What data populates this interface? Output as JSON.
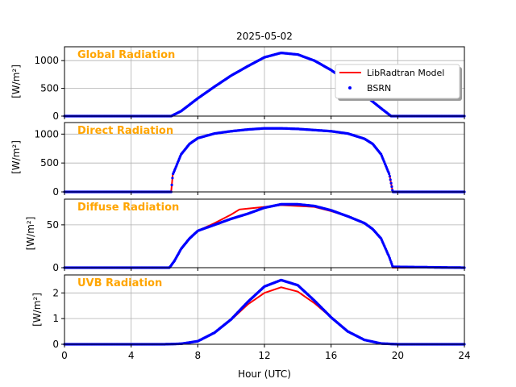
{
  "figure_title": "2025-05-02",
  "colors": {
    "model": "#ff0000",
    "bsrn": "#0000ff",
    "panel_title": "#ffa500",
    "grid": "#b0b0b0"
  },
  "legend": {
    "placement": "upper-right of top panel",
    "entries": [
      "LibRadtran Model",
      "BSRN"
    ]
  },
  "chart_data": [
    {
      "type": "line",
      "panel_title": "Global Radiation",
      "ylabel": "[W/m²]",
      "xlabel": "",
      "xlim": [
        0,
        24
      ],
      "ylim": [
        0,
        1250
      ],
      "yticks": [
        0,
        500,
        1000
      ],
      "xticks": [
        0,
        4,
        8,
        12,
        16,
        20,
        24
      ],
      "grid": true,
      "series": [
        {
          "name": "LibRadtran Model",
          "style": "line",
          "x": [
            0,
            6.4,
            7,
            8,
            9,
            10,
            11,
            12,
            13,
            14,
            15,
            16,
            17,
            18,
            19,
            19.6,
            24
          ],
          "y": [
            0,
            0,
            90,
            320,
            530,
            730,
            900,
            1060,
            1140,
            1110,
            1000,
            830,
            620,
            380,
            140,
            0,
            0
          ]
        },
        {
          "name": "BSRN",
          "style": "points",
          "x": [
            0,
            6.4,
            7,
            8,
            9,
            10,
            11,
            12,
            13,
            14,
            15,
            16,
            17,
            18,
            19,
            19.6,
            24
          ],
          "y": [
            0,
            0,
            90,
            320,
            530,
            730,
            900,
            1060,
            1140,
            1110,
            1000,
            830,
            620,
            380,
            140,
            0,
            0
          ]
        }
      ]
    },
    {
      "type": "line",
      "panel_title": "Direct Radiation",
      "ylabel": "[W/m²]",
      "xlabel": "",
      "xlim": [
        0,
        24
      ],
      "ylim": [
        0,
        1200
      ],
      "yticks": [
        0,
        500,
        1000
      ],
      "xticks": [
        0,
        4,
        8,
        12,
        16,
        20,
        24
      ],
      "grid": true,
      "series": [
        {
          "name": "LibRadtran Model",
          "style": "line",
          "x": [
            0,
            6.4,
            6.5,
            7,
            7.5,
            8,
            9,
            10,
            11,
            12,
            13,
            14,
            15,
            16,
            17,
            18,
            18.5,
            19,
            19.5,
            19.7,
            24
          ],
          "y": [
            0,
            0,
            300,
            650,
            830,
            930,
            1010,
            1050,
            1080,
            1100,
            1100,
            1090,
            1070,
            1050,
            1010,
            920,
            830,
            650,
            300,
            0,
            0
          ]
        },
        {
          "name": "BSRN",
          "style": "points",
          "x": [
            0,
            6.4,
            6.5,
            7,
            7.5,
            8,
            9,
            10,
            11,
            12,
            13,
            14,
            15,
            16,
            17,
            18,
            18.5,
            19,
            19.5,
            19.7,
            24
          ],
          "y": [
            0,
            0,
            300,
            650,
            830,
            930,
            1010,
            1050,
            1080,
            1100,
            1100,
            1090,
            1070,
            1050,
            1010,
            920,
            830,
            650,
            300,
            0,
            0
          ]
        }
      ]
    },
    {
      "type": "line",
      "panel_title": "Diffuse Radiation",
      "ylabel": "[W/m²]",
      "xlabel": "",
      "xlim": [
        0,
        24
      ],
      "ylim": [
        0,
        80
      ],
      "yticks": [
        0,
        50
      ],
      "xticks": [
        0,
        4,
        8,
        12,
        16,
        20,
        24
      ],
      "grid": true,
      "series": [
        {
          "name": "LibRadtran Model",
          "style": "line",
          "x": [
            0,
            6.3,
            6.6,
            7,
            7.5,
            8,
            9,
            10,
            10.5,
            11,
            12,
            13,
            14,
            15,
            16,
            17,
            18,
            18.5,
            19,
            19.5,
            19.7,
            24
          ],
          "y": [
            0,
            0,
            8,
            22,
            34,
            43,
            52,
            62,
            68,
            69,
            71,
            73,
            72,
            71,
            66,
            60,
            52,
            45,
            34,
            12,
            0,
            0
          ]
        },
        {
          "name": "BSRN",
          "style": "points",
          "x": [
            0,
            6.3,
            6.6,
            7,
            7.5,
            8,
            9,
            10,
            11,
            12,
            13,
            14,
            15,
            16,
            17,
            18,
            18.5,
            19,
            19.5,
            19.7,
            24
          ],
          "y": [
            0,
            0,
            8,
            22,
            34,
            43,
            50,
            57,
            63,
            70,
            74,
            74,
            72,
            67,
            60,
            52,
            45,
            34,
            12,
            1,
            0
          ]
        }
      ]
    },
    {
      "type": "line",
      "panel_title": "UVB Radiation",
      "ylabel": "[W/m²]",
      "xlabel": "Hour (UTC)",
      "xlim": [
        0,
        24
      ],
      "ylim": [
        0,
        2.7
      ],
      "yticks": [
        0,
        1,
        2
      ],
      "xticks": [
        0,
        4,
        8,
        12,
        16,
        20,
        24
      ],
      "grid": true,
      "series": [
        {
          "name": "LibRadtran Model",
          "style": "line",
          "x": [
            0,
            6,
            7,
            8,
            9,
            10,
            11,
            12,
            13,
            14,
            15,
            16,
            17,
            18,
            19,
            20,
            24
          ],
          "y": [
            0,
            0,
            0.02,
            0.12,
            0.45,
            0.95,
            1.55,
            2.0,
            2.22,
            2.05,
            1.6,
            1.05,
            0.5,
            0.17,
            0.03,
            0,
            0
          ]
        },
        {
          "name": "BSRN",
          "style": "points",
          "x": [
            0,
            6,
            7,
            8,
            9,
            10,
            11,
            12,
            13,
            14,
            15,
            16,
            17,
            18,
            19,
            20,
            24
          ],
          "y": [
            0,
            0,
            0.02,
            0.12,
            0.45,
            0.97,
            1.65,
            2.25,
            2.5,
            2.3,
            1.7,
            1.05,
            0.5,
            0.17,
            0.03,
            0,
            0
          ]
        }
      ]
    }
  ]
}
